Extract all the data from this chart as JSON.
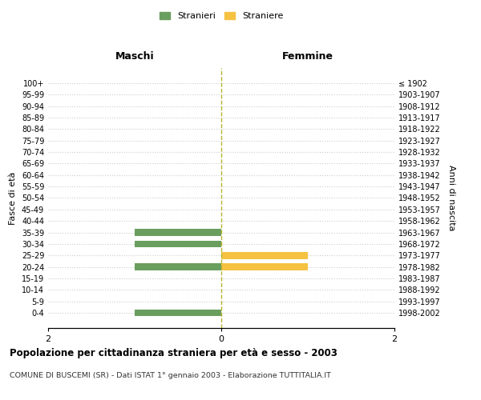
{
  "age_groups": [
    "100+",
    "95-99",
    "90-94",
    "85-89",
    "80-84",
    "75-79",
    "70-74",
    "65-69",
    "60-64",
    "55-59",
    "50-54",
    "45-49",
    "40-44",
    "35-39",
    "30-34",
    "25-29",
    "20-24",
    "15-19",
    "10-14",
    "5-9",
    "0-4"
  ],
  "birth_years": [
    "≤ 1902",
    "1903-1907",
    "1908-1912",
    "1913-1917",
    "1918-1922",
    "1923-1927",
    "1928-1932",
    "1933-1937",
    "1938-1942",
    "1943-1947",
    "1948-1952",
    "1953-1957",
    "1958-1962",
    "1963-1967",
    "1968-1972",
    "1973-1977",
    "1978-1982",
    "1983-1987",
    "1988-1992",
    "1993-1997",
    "1998-2002"
  ],
  "maschi_stranieri": [
    0,
    0,
    0,
    0,
    0,
    0,
    0,
    0,
    0,
    0,
    0,
    0,
    0,
    1,
    1,
    0,
    1,
    0,
    0,
    0,
    1
  ],
  "femmine_straniere": [
    0,
    0,
    0,
    0,
    0,
    0,
    0,
    0,
    0,
    0,
    0,
    0,
    0,
    0,
    0,
    1,
    1,
    0,
    0,
    0,
    0
  ],
  "xlim": [
    -2,
    2
  ],
  "color_maschi": "#6a9e5e",
  "color_femmine": "#f5c242",
  "color_center_line": "#b5b530",
  "title": "Popolazione per cittadinanza straniera per età e sesso - 2003",
  "subtitle": "COMUNE DI BUSCEMI (SR) - Dati ISTAT 1° gennaio 2003 - Elaborazione TUTTITALIA.IT",
  "ylabel_left": "Fasce di età",
  "ylabel_right": "Anni di nascita",
  "xlabel_left": "Maschi",
  "xlabel_right": "Femmine",
  "legend_maschi": "Stranieri",
  "legend_femmine": "Straniere",
  "background_color": "#ffffff",
  "grid_color": "#cccccc",
  "bar_height": 0.6
}
